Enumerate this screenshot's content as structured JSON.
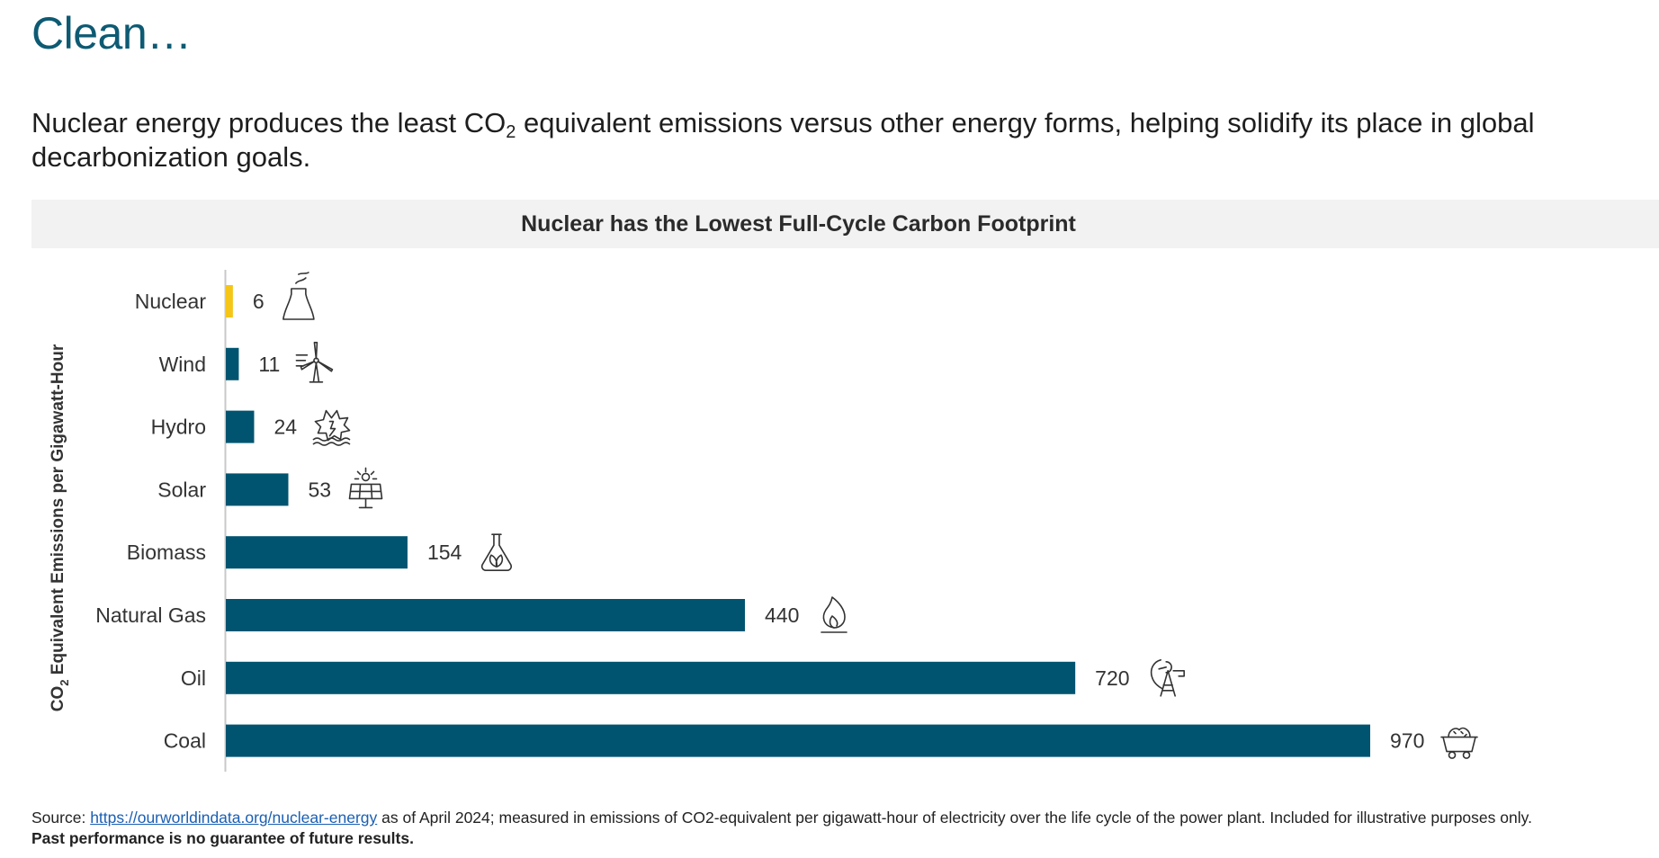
{
  "page": {
    "title": "Clean…",
    "headline_part1": "Nuclear energy produces the least CO",
    "headline_sub": "2",
    "headline_part2": " equivalent emissions versus other energy forms, helping solidify its place in global decarbonization goals.",
    "source_prefix": "Source: ",
    "source_link": "https://ourworldindata.org/nuclear-energy",
    "source_suffix": " as of April 2024; measured in emissions of CO2-equivalent per gigawatt-hour of electricity over the life cycle of the power plant. Included for illustrative purposes only.",
    "disclaimer": "Past performance is no guarantee of future results."
  },
  "chart_data": {
    "type": "bar",
    "orientation": "horizontal",
    "title": "Nuclear has the Lowest Full-Cycle Carbon Footprint",
    "ylabel_main": "CO",
    "ylabel_sub": "2",
    "ylabel_rest": " Equivalent Emissions per Gigawatt-Hour",
    "categories": [
      "Nuclear",
      "Wind",
      "Hydro",
      "Solar",
      "Biomass",
      "Natural Gas",
      "Oil",
      "Coal"
    ],
    "values": [
      6,
      11,
      24,
      53,
      154,
      440,
      720,
      970
    ],
    "icons": [
      "nuclear-plant-icon",
      "wind-turbine-icon",
      "hydro-icon",
      "solar-panel-icon",
      "biomass-icon",
      "gas-flame-icon",
      "oil-rig-icon",
      "coal-cart-icon"
    ],
    "xlim": [
      0,
      970
    ],
    "grid": false,
    "colors": {
      "highlight": "#f5c518",
      "bar": "#005470",
      "axis": "#c8c8c8",
      "text": "#333333"
    }
  }
}
